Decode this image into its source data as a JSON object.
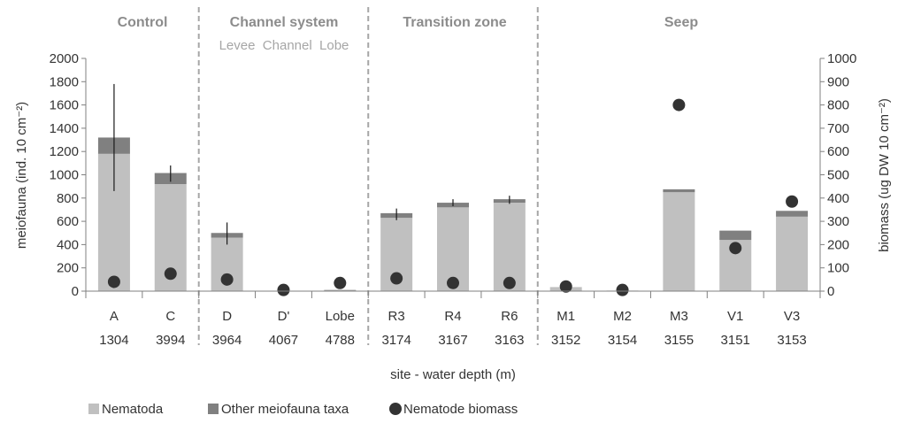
{
  "chart_data": {
    "type": "bar",
    "xlabel": "site - water depth (m)",
    "ylabel_left": "meiofauna (ind. 10 cm⁻²)",
    "ylabel_right": "biomass (ug DW 10 cm⁻²)",
    "ylim_left": [
      0,
      2000
    ],
    "ylim_right": [
      0,
      1000
    ],
    "yticks_left": [
      "0",
      "200",
      "400",
      "600",
      "800",
      "1000",
      "1200",
      "1400",
      "1600",
      "1800",
      "2000"
    ],
    "yticks_right": [
      "0",
      "100",
      "200",
      "300",
      "400",
      "500",
      "600",
      "700",
      "800",
      "900",
      "1000"
    ],
    "categories": [
      {
        "site": "A",
        "depth": "1304"
      },
      {
        "site": "C",
        "depth": "3994"
      },
      {
        "site": "D",
        "depth": "3964"
      },
      {
        "site": "D'",
        "depth": "4067"
      },
      {
        "site": "Lobe",
        "depth": "4788"
      },
      {
        "site": "R3",
        "depth": "3174"
      },
      {
        "site": "R4",
        "depth": "3167"
      },
      {
        "site": "R6",
        "depth": "3163"
      },
      {
        "site": "M1",
        "depth": "3152"
      },
      {
        "site": "M2",
        "depth": "3154"
      },
      {
        "site": "M3",
        "depth": "3155"
      },
      {
        "site": "V1",
        "depth": "3151"
      },
      {
        "site": "V3",
        "depth": "3153"
      }
    ],
    "series": [
      {
        "name": "Nematoda",
        "color": "#c0c0c0",
        "values": [
          1180,
          920,
          460,
          0,
          5,
          630,
          720,
          760,
          35,
          5,
          850,
          440,
          640
        ]
      },
      {
        "name": "Other meiofauna taxa",
        "color": "#808080",
        "values": [
          140,
          95,
          40,
          0,
          5,
          40,
          40,
          30,
          0,
          0,
          25,
          80,
          50
        ]
      },
      {
        "name": "Nematode biomass",
        "color": "#333333",
        "axis": "right",
        "values": [
          40,
          75,
          50,
          5,
          35,
          55,
          35,
          35,
          20,
          5,
          800,
          185,
          385
        ]
      }
    ],
    "error_bars": [
      {
        "index": 0,
        "low": 860,
        "high": 1780
      },
      {
        "index": 1,
        "low": 940,
        "high": 1080
      },
      {
        "index": 2,
        "low": 400,
        "high": 590
      },
      {
        "index": 5,
        "low": 610,
        "high": 710
      },
      {
        "index": 6,
        "low": 730,
        "high": 790
      },
      {
        "index": 7,
        "low": 750,
        "high": 820
      }
    ],
    "regions": [
      {
        "label": "Control",
        "sublabel": ""
      },
      {
        "label": "Channel system",
        "sublabel": "Levee  Channel  Lobe"
      },
      {
        "label": "Transition zone",
        "sublabel": ""
      },
      {
        "label": "Seep",
        "sublabel": ""
      }
    ],
    "legend_position": "bottom-left"
  }
}
